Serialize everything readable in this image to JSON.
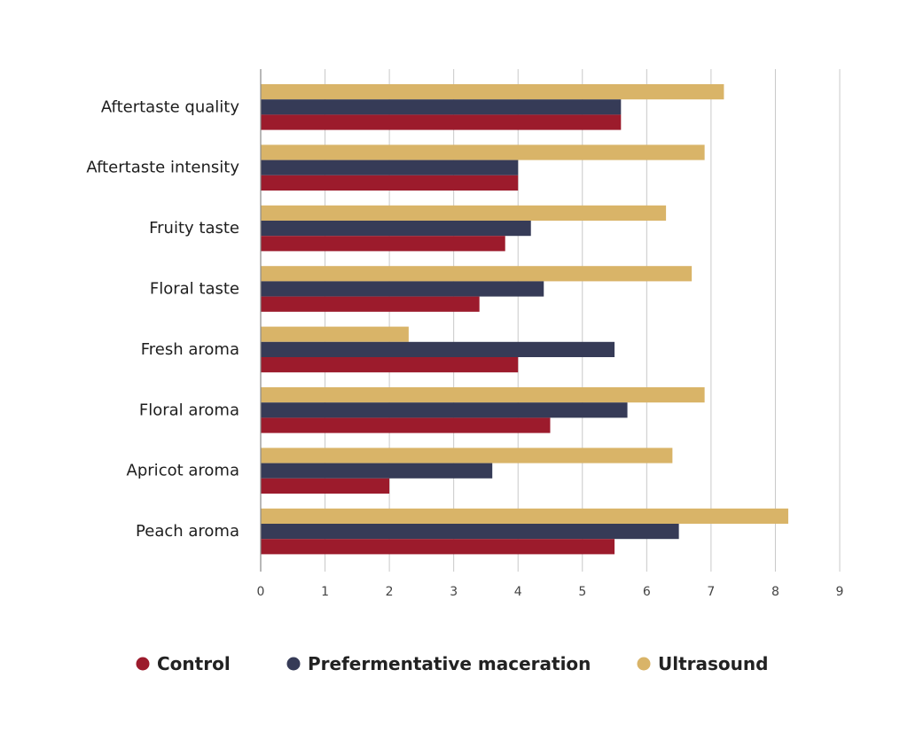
{
  "chart_data": {
    "type": "bar",
    "orientation": "horizontal",
    "title": "",
    "xlabel": "",
    "ylabel": "",
    "xlim": [
      0,
      9
    ],
    "x_ticks": [
      "0",
      "1",
      "2",
      "3",
      "4",
      "5",
      "6",
      "7",
      "8",
      "9"
    ],
    "grid": true,
    "legend_position": "bottom",
    "categories": [
      "Aftertaste quality",
      "Aftertaste intensity",
      "Fruity taste",
      "Floral taste",
      "Fresh aroma",
      "Floral aroma",
      "Apricot aroma",
      "Peach aroma"
    ],
    "series": [
      {
        "name": "Ultrasound",
        "color": "#d9b468",
        "values": [
          7.2,
          6.9,
          6.3,
          6.7,
          2.3,
          6.9,
          6.4,
          8.2
        ]
      },
      {
        "name": "Prefermentative maceration",
        "color": "#363b57",
        "values": [
          5.6,
          4.0,
          4.2,
          4.4,
          5.5,
          5.7,
          3.6,
          6.5
        ]
      },
      {
        "name": "Control",
        "color": "#9c1b2c",
        "values": [
          5.6,
          4.0,
          3.8,
          3.4,
          4.0,
          4.5,
          2.0,
          5.5
        ]
      }
    ],
    "legend": [
      {
        "name": "Control",
        "color": "#9c1b2c"
      },
      {
        "name": "Prefermentative maceration",
        "color": "#363b57"
      },
      {
        "name": "Ultrasound",
        "color": "#d9b468"
      }
    ]
  }
}
